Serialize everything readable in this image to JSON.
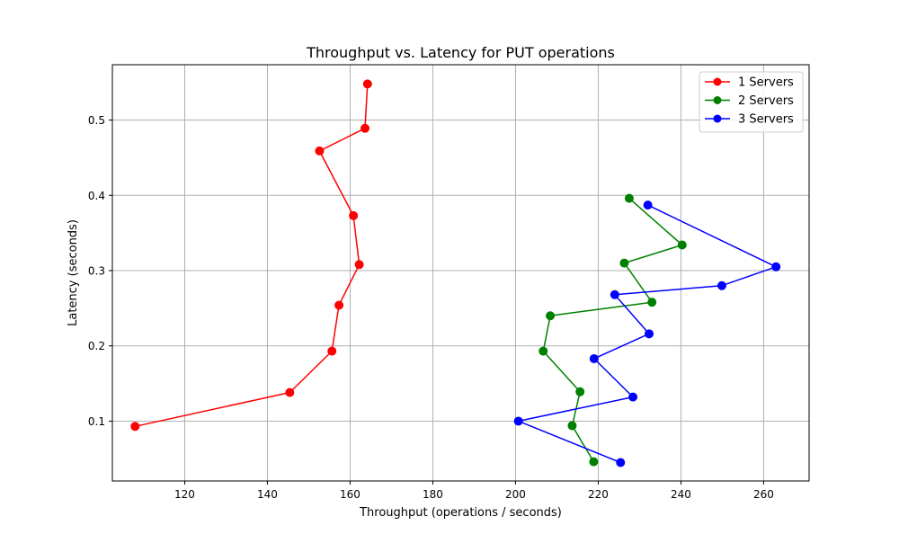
{
  "chart_data": {
    "type": "line",
    "title": "Throughput vs. Latency for PUT operations",
    "xlabel": "Throughput (operations / seconds)",
    "ylabel": "Latency (seconds)",
    "xlim": [
      102.5,
      271.0
    ],
    "ylim": [
      0.0205,
      0.5735
    ],
    "x_ticks": [
      120,
      140,
      160,
      180,
      200,
      220,
      240,
      260
    ],
    "y_ticks": [
      0.1,
      0.2,
      0.3,
      0.4,
      0.5
    ],
    "x_tick_labels": [
      "120",
      "140",
      "160",
      "180",
      "200",
      "220",
      "240",
      "260"
    ],
    "y_tick_labels": [
      "0.1",
      "0.2",
      "0.3",
      "0.4",
      "0.5"
    ],
    "grid": true,
    "legend_position": "top-right",
    "series": [
      {
        "name": "1 Servers",
        "color": "#ff0000",
        "points": [
          {
            "x": 108.0,
            "y": 0.093
          },
          {
            "x": 145.4,
            "y": 0.138
          },
          {
            "x": 155.6,
            "y": 0.193
          },
          {
            "x": 157.3,
            "y": 0.254
          },
          {
            "x": 162.2,
            "y": 0.308
          },
          {
            "x": 160.8,
            "y": 0.373
          },
          {
            "x": 152.6,
            "y": 0.459
          },
          {
            "x": 163.6,
            "y": 0.489
          },
          {
            "x": 164.2,
            "y": 0.548
          }
        ]
      },
      {
        "name": "2 Servers",
        "color": "#008000",
        "points": [
          {
            "x": 218.9,
            "y": 0.046
          },
          {
            "x": 213.7,
            "y": 0.094
          },
          {
            "x": 215.6,
            "y": 0.139
          },
          {
            "x": 206.7,
            "y": 0.193
          },
          {
            "x": 208.4,
            "y": 0.24
          },
          {
            "x": 233.0,
            "y": 0.258
          },
          {
            "x": 226.3,
            "y": 0.31
          },
          {
            "x": 240.3,
            "y": 0.334
          },
          {
            "x": 227.5,
            "y": 0.396
          }
        ]
      },
      {
        "name": "3 Servers",
        "color": "#0000ff",
        "points": [
          {
            "x": 225.4,
            "y": 0.045
          },
          {
            "x": 200.7,
            "y": 0.1
          },
          {
            "x": 228.4,
            "y": 0.132
          },
          {
            "x": 219.0,
            "y": 0.183
          },
          {
            "x": 232.3,
            "y": 0.216
          },
          {
            "x": 224.0,
            "y": 0.268
          },
          {
            "x": 249.9,
            "y": 0.28
          },
          {
            "x": 263.0,
            "y": 0.305
          },
          {
            "x": 232.0,
            "y": 0.387
          }
        ]
      }
    ]
  }
}
